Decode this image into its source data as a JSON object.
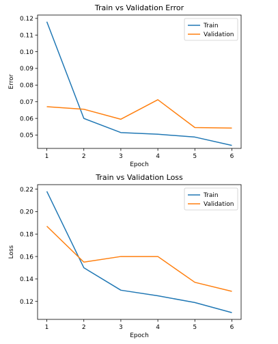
{
  "chart_data": [
    {
      "type": "line",
      "title": "Train vs Validation Error",
      "xlabel": "Epoch",
      "ylabel": "Error",
      "x": [
        1,
        2,
        3,
        4,
        5,
        6
      ],
      "xticks": [
        "1",
        "2",
        "3",
        "4",
        "5",
        "6"
      ],
      "ylim": [
        0.042,
        0.122
      ],
      "yticks": [
        "0.05",
        "0.06",
        "0.07",
        "0.08",
        "0.09",
        "0.10",
        "0.11",
        "0.12"
      ],
      "ytick_values": [
        0.05,
        0.06,
        0.07,
        0.08,
        0.09,
        0.1,
        0.11,
        0.12
      ],
      "grid": false,
      "legend_position": "top-right",
      "series": [
        {
          "name": "Train",
          "color": "#1f77b4",
          "values": [
            0.118,
            0.06,
            0.0515,
            0.0505,
            0.0488,
            0.0438
          ]
        },
        {
          "name": "Validation",
          "color": "#ff7f0e",
          "values": [
            0.067,
            0.0655,
            0.0595,
            0.0712,
            0.0545,
            0.0542
          ]
        }
      ]
    },
    {
      "type": "line",
      "title": "Train vs Validation Loss",
      "xlabel": "Epoch",
      "ylabel": "Loss",
      "x": [
        1,
        2,
        3,
        4,
        5,
        6
      ],
      "xticks": [
        "1",
        "2",
        "3",
        "4",
        "5",
        "6"
      ],
      "ylim": [
        0.104,
        0.224
      ],
      "yticks": [
        "0.12",
        "0.14",
        "0.16",
        "0.18",
        "0.20",
        "0.22"
      ],
      "ytick_values": [
        0.12,
        0.14,
        0.16,
        0.18,
        0.2,
        0.22
      ],
      "grid": false,
      "legend_position": "top-right",
      "series": [
        {
          "name": "Train",
          "color": "#1f77b4",
          "values": [
            0.218,
            0.15,
            0.13,
            0.125,
            0.119,
            0.11
          ]
        },
        {
          "name": "Validation",
          "color": "#ff7f0e",
          "values": [
            0.187,
            0.155,
            0.16,
            0.16,
            0.137,
            0.129
          ]
        }
      ]
    }
  ]
}
